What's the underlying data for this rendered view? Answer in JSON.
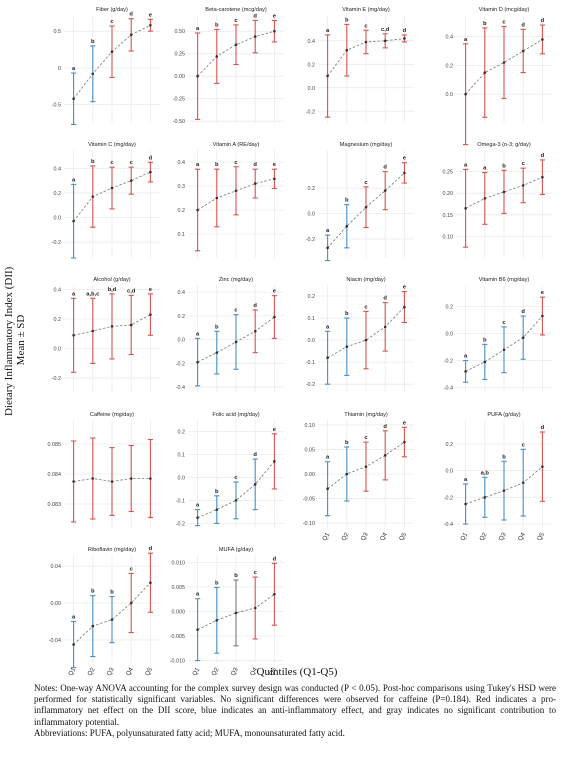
{
  "y_axis_title_line1": "Dietary Inflammatory Index (DII)",
  "y_axis_title_line2": "Mean ± SD",
  "x_axis_title": "Quintiles (Q1-Q5)",
  "notes": {
    "line1": "Notes: One-way ANOVA accounting for the complex survey design was conducted (P < 0.05). Post-hoc comparisons using Tukey's HSD were performed for statistically significant variables. No significant differences were observed for caffeine (P=0.184). Red indicates a pro-inflammatory net effect on the DII score, blue indicates an anti-inflammatory effect, and gray indicates no significant contribution to inflammatory potential.",
    "line2": "Abbreviations: PUFA, polyunsaturated fatty acid; MUFA, monounsaturated fatty acid."
  },
  "colors": {
    "blue": "#4a8ec5",
    "red": "#d9534f",
    "gray": "#7a7a7a",
    "black": "#333333",
    "grid": "#ebebeb"
  },
  "chart_data": [
    {
      "type": "scatter",
      "title": "Fiber (g/day)",
      "categories": [
        "Q1",
        "Q2",
        "Q3",
        "Q4",
        "Q5"
      ],
      "ylim": [
        -0.75,
        0.72
      ],
      "yticks": [
        -0.5,
        0,
        0.5
      ],
      "ytick_labels": [
        "-0.5",
        "0",
        "0.5"
      ],
      "mean": [
        -0.42,
        -0.08,
        0.22,
        0.45,
        0.58
      ],
      "sd": [
        0.35,
        0.38,
        0.35,
        0.22,
        0.08
      ],
      "colors": [
        "blue",
        "blue",
        "red",
        "red",
        "red"
      ],
      "letters": [
        "a",
        "b",
        "c",
        "d",
        "e"
      ]
    },
    {
      "type": "scatter",
      "title": "Beta-carotene (mcg/day)",
      "categories": [
        "Q1",
        "Q2",
        "Q3",
        "Q4",
        "Q5"
      ],
      "ylim": [
        -0.52,
        0.68
      ],
      "yticks": [
        -0.5,
        -0.25,
        0,
        0.25,
        0.5
      ],
      "ytick_labels": [
        "-0.50",
        "-0.25",
        "0.00",
        "0.25",
        "0.50"
      ],
      "mean": [
        0.0,
        0.22,
        0.35,
        0.44,
        0.5
      ],
      "sd": [
        0.48,
        0.3,
        0.22,
        0.18,
        0.12
      ],
      "colors": [
        "red",
        "red",
        "red",
        "red",
        "red"
      ],
      "letters": [
        "a",
        "b",
        "c",
        "d",
        "e"
      ]
    },
    {
      "type": "scatter",
      "title": "Vitamin E (mg/day)",
      "categories": [
        "Q1",
        "Q2",
        "Q3",
        "Q4",
        "Q5"
      ],
      "ylim": [
        -0.3,
        0.62
      ],
      "yticks": [
        -0.2,
        0,
        0.2,
        0.4
      ],
      "ytick_labels": [
        "-0.2",
        "0.0",
        "0.2",
        "0.4"
      ],
      "mean": [
        0.1,
        0.32,
        0.39,
        0.4,
        0.42
      ],
      "sd": [
        0.35,
        0.22,
        0.1,
        0.06,
        0.03
      ],
      "colors": [
        "red",
        "red",
        "red",
        "red",
        "red"
      ],
      "letters": [
        "a",
        "b",
        "c",
        "c,d",
        "d"
      ]
    },
    {
      "type": "scatter",
      "title": "Vitamin D (mcg/day)",
      "categories": [
        "Q1",
        "Q2",
        "Q3",
        "Q4",
        "Q5"
      ],
      "ylim": [
        -0.2,
        0.55
      ],
      "yticks": [
        0,
        0.2,
        0.4
      ],
      "ytick_labels": [
        "0.0",
        "0.2",
        "0.4"
      ],
      "mean": [
        0.0,
        0.15,
        0.22,
        0.3,
        0.38
      ],
      "sd": [
        0.35,
        0.31,
        0.25,
        0.15,
        0.1
      ],
      "colors": [
        "red",
        "red",
        "red",
        "red",
        "red"
      ],
      "letters": [
        "a",
        "b",
        "c",
        "d",
        "d"
      ]
    },
    {
      "type": "scatter",
      "title": "Vitamin C (mg/day)",
      "categories": [
        "Q1",
        "Q2",
        "Q3",
        "Q4",
        "Q5"
      ],
      "ylim": [
        -0.33,
        0.55
      ],
      "yticks": [
        -0.2,
        0,
        0.2,
        0.4
      ],
      "ytick_labels": [
        "-0.2",
        "0.0",
        "0.2",
        "0.4"
      ],
      "mean": [
        -0.03,
        0.17,
        0.24,
        0.3,
        0.37
      ],
      "sd": [
        0.3,
        0.25,
        0.17,
        0.11,
        0.08
      ],
      "colors": [
        "blue",
        "red",
        "red",
        "red",
        "red"
      ],
      "letters": [
        "a",
        "b",
        "c",
        "c",
        "d"
      ]
    },
    {
      "type": "scatter",
      "title": "Vitamin A (RE/day)",
      "categories": [
        "Q1",
        "Q2",
        "Q3",
        "Q4",
        "Q5"
      ],
      "ylim": [
        0,
        0.45
      ],
      "yticks": [
        0.1,
        0.2,
        0.3,
        0.4
      ],
      "ytick_labels": [
        "0.1",
        "0.2",
        "0.3",
        "0.4"
      ],
      "mean": [
        0.2,
        0.25,
        0.28,
        0.31,
        0.33
      ],
      "sd": [
        0.17,
        0.12,
        0.1,
        0.06,
        0.04
      ],
      "colors": [
        "red",
        "red",
        "red",
        "red",
        "red"
      ],
      "letters": [
        "a",
        "b",
        "c",
        "d",
        "e"
      ]
    },
    {
      "type": "scatter",
      "title": "Magnesium (mg/day)",
      "categories": [
        "Q1",
        "Q2",
        "Q3",
        "Q4",
        "Q5"
      ],
      "ylim": [
        -0.35,
        0.5
      ],
      "yticks": [
        -0.2,
        0,
        0.2
      ],
      "ytick_labels": [
        "-0.2",
        "0.0",
        "0.2"
      ],
      "mean": [
        -0.27,
        -0.1,
        0.05,
        0.18,
        0.32
      ],
      "sd": [
        0.1,
        0.17,
        0.16,
        0.15,
        0.08
      ],
      "colors": [
        "blue",
        "blue",
        "red",
        "red",
        "red"
      ],
      "letters": [
        "a",
        "b",
        "c",
        "d",
        "e"
      ]
    },
    {
      "type": "scatter",
      "title": "Omega-3 (n-3; g/day)",
      "categories": [
        "Q1",
        "Q2",
        "Q3",
        "Q4",
        "Q5"
      ],
      "ylim": [
        0.05,
        0.3
      ],
      "yticks": [
        0.1,
        0.15,
        0.2,
        0.25
      ],
      "ytick_labels": [
        "0.10",
        "0.15",
        "0.20",
        "0.25"
      ],
      "mean": [
        0.165,
        0.188,
        0.203,
        0.218,
        0.237
      ],
      "sd": [
        0.09,
        0.06,
        0.05,
        0.04,
        0.04
      ],
      "colors": [
        "red",
        "red",
        "red",
        "red",
        "red"
      ],
      "letters": [
        "a",
        "a",
        "b",
        "c",
        "d"
      ]
    },
    {
      "type": "scatter",
      "title": "Alcohol (g/day)",
      "categories": [
        "Q1",
        "Q2",
        "Q3",
        "Q4",
        "Q5"
      ],
      "ylim": [
        -0.3,
        0.43
      ],
      "yticks": [
        -0.2,
        0,
        0.2,
        0.4
      ],
      "ytick_labels": [
        "-0.2",
        "0.0",
        "0.2",
        "0.4"
      ],
      "mean": [
        0.09,
        0.12,
        0.15,
        0.16,
        0.23
      ],
      "sd": [
        0.25,
        0.22,
        0.22,
        0.2,
        0.14
      ],
      "colors": [
        "red",
        "red",
        "red",
        "red",
        "red"
      ],
      "letters": [
        "a",
        "a,b,c",
        "b,d",
        "c,d",
        "e"
      ]
    },
    {
      "type": "scatter",
      "title": "Zinc (mg/day)",
      "categories": [
        "Q1",
        "Q2",
        "Q3",
        "Q4",
        "Q5"
      ],
      "ylim": [
        -0.45,
        0.46
      ],
      "yticks": [
        -0.4,
        -0.2,
        0,
        0.2,
        0.4
      ],
      "ytick_labels": [
        "-0.4",
        "-0.2",
        "0.0",
        "0.2",
        "0.4"
      ],
      "mean": [
        -0.19,
        -0.11,
        -0.02,
        0.07,
        0.19
      ],
      "sd": [
        0.2,
        0.18,
        0.23,
        0.18,
        0.18
      ],
      "colors": [
        "blue",
        "blue",
        "blue",
        "red",
        "red"
      ],
      "letters": [
        "a",
        "b",
        "c",
        "d",
        "e"
      ]
    },
    {
      "type": "scatter",
      "title": "Niacin (mg/day)",
      "categories": [
        "Q1",
        "Q2",
        "Q3",
        "Q4",
        "Q5"
      ],
      "ylim": [
        -0.24,
        0.25
      ],
      "yticks": [
        -0.2,
        -0.1,
        0,
        0.1,
        0.2
      ],
      "ytick_labels": [
        "-0.2",
        "-0.1",
        "0.0",
        "0.1",
        "0.2"
      ],
      "mean": [
        -0.08,
        -0.03,
        0.0,
        0.06,
        0.15
      ],
      "sd": [
        0.12,
        0.13,
        0.13,
        0.11,
        0.07
      ],
      "colors": [
        "blue",
        "blue",
        "red",
        "red",
        "red"
      ],
      "letters": [
        "a",
        "b",
        "c",
        "d",
        "e"
      ]
    },
    {
      "type": "scatter",
      "title": "Vitamin B6 (mg/day)",
      "categories": [
        "Q1",
        "Q2",
        "Q3",
        "Q4",
        "Q5"
      ],
      "ylim": [
        -0.44,
        0.36
      ],
      "yticks": [
        -0.4,
        -0.2,
        0,
        0.2
      ],
      "ytick_labels": [
        "-0.4",
        "-0.2",
        "0.0",
        "0.2"
      ],
      "mean": [
        -0.28,
        -0.21,
        -0.12,
        -0.03,
        0.13
      ],
      "sd": [
        0.08,
        0.13,
        0.17,
        0.16,
        0.14
      ],
      "colors": [
        "blue",
        "blue",
        "blue",
        "blue",
        "red"
      ],
      "letters": [
        "a",
        "b",
        "c",
        "d",
        "e"
      ]
    },
    {
      "type": "scatter",
      "title": "Caffeine (mg/day)",
      "categories": [
        "Q1",
        "Q2",
        "Q3",
        "Q4",
        "Q5"
      ],
      "ylim": [
        0.0822,
        0.0858
      ],
      "yticks": [
        0.083,
        0.084,
        0.085
      ],
      "ytick_labels": [
        "0.083",
        "0.084",
        "0.085"
      ],
      "mean": [
        0.08375,
        0.08385,
        0.08375,
        0.08385,
        0.08385
      ],
      "sd": [
        0.00135,
        0.00135,
        0.00113,
        0.0011,
        0.0013
      ],
      "colors": [
        "red",
        "red",
        "red",
        "red",
        "red"
      ],
      "letters": [
        "",
        "",
        "",
        "",
        ""
      ]
    },
    {
      "type": "scatter",
      "title": "Folic acid (mg/day)",
      "categories": [
        "Q1",
        "Q2",
        "Q3",
        "Q4",
        "Q5"
      ],
      "ylim": [
        -0.22,
        0.25
      ],
      "yticks": [
        -0.2,
        -0.1,
        0,
        0.1,
        0.2
      ],
      "ytick_labels": [
        "-0.2",
        "-0.1",
        "0.0",
        "0.1",
        "0.2"
      ],
      "mean": [
        -0.175,
        -0.14,
        -0.1,
        -0.03,
        0.07
      ],
      "sd": [
        0.035,
        0.06,
        0.08,
        0.11,
        0.12
      ],
      "colors": [
        "blue",
        "blue",
        "blue",
        "blue",
        "red"
      ],
      "letters": [
        "a",
        "b",
        "c",
        "d",
        "e"
      ]
    },
    {
      "type": "scatter",
      "title": "Thiamin (mg/day)",
      "categories": [
        "Q1",
        "Q2",
        "Q3",
        "Q4",
        "Q5"
      ],
      "ylim": [
        -0.11,
        0.11
      ],
      "yticks": [
        -0.1,
        -0.05,
        0,
        0.05,
        0.1
      ],
      "ytick_labels": [
        "-0.10",
        "-0.05",
        "0.00",
        "0.05",
        "0.10"
      ],
      "mean": [
        -0.03,
        0.0,
        0.015,
        0.038,
        0.065
      ],
      "sd": [
        0.055,
        0.055,
        0.05,
        0.05,
        0.03
      ],
      "colors": [
        "blue",
        "blue",
        "red",
        "red",
        "red"
      ],
      "letters": [
        "a",
        "b",
        "c",
        "d",
        "e"
      ]
    },
    {
      "type": "scatter",
      "title": "PUFA (g/day)",
      "categories": [
        "Q1",
        "Q2",
        "Q3",
        "Q4",
        "Q5"
      ],
      "ylim": [
        -0.43,
        0.38
      ],
      "yticks": [
        -0.4,
        -0.2,
        0,
        0.2
      ],
      "ytick_labels": [
        "-0.4",
        "-0.2",
        "0.0",
        "0.2"
      ],
      "mean": [
        -0.25,
        -0.2,
        -0.15,
        -0.09,
        0.03
      ],
      "sd": [
        0.15,
        0.15,
        0.22,
        0.25,
        0.26
      ],
      "colors": [
        "blue",
        "blue",
        "blue",
        "blue",
        "red"
      ],
      "letters": [
        "a",
        "a,b",
        "b",
        "c",
        "d"
      ]
    },
    {
      "type": "scatter",
      "title": "Riboflavin (mg/day)",
      "categories": [
        "Q1",
        "Q2",
        "Q3",
        "Q4",
        "Q5"
      ],
      "ylim": [
        -0.065,
        0.052
      ],
      "yticks": [
        -0.04,
        0,
        0.04
      ],
      "ytick_labels": [
        "-0.04",
        "0.00",
        "0.04"
      ],
      "mean": [
        -0.045,
        -0.025,
        -0.018,
        0.0,
        0.022
      ],
      "sd": [
        0.025,
        0.033,
        0.025,
        0.032,
        0.032
      ],
      "colors": [
        "blue",
        "blue",
        "blue",
        "red",
        "red"
      ],
      "letters": [
        "a",
        "b",
        "b",
        "c",
        "d"
      ]
    },
    {
      "type": "scatter",
      "title": "MUFA (g/day)",
      "categories": [
        "Q1",
        "Q2",
        "Q3",
        "Q4",
        "Q5"
      ],
      "ylim": [
        -0.0105,
        0.0115
      ],
      "yticks": [
        -0.01,
        -0.005,
        0,
        0.005,
        0.01
      ],
      "ytick_labels": [
        "-0.010",
        "-0.005",
        "0.000",
        "0.005",
        "0.010"
      ],
      "mean": [
        -0.0037,
        -0.0018,
        -0.0003,
        0.0007,
        0.0035
      ],
      "sd": [
        0.0063,
        0.0067,
        0.0067,
        0.0063,
        0.0063
      ],
      "colors": [
        "blue",
        "blue",
        "gray",
        "red",
        "red"
      ],
      "letters": [
        "a",
        "b",
        "b",
        "c",
        "d"
      ]
    }
  ]
}
